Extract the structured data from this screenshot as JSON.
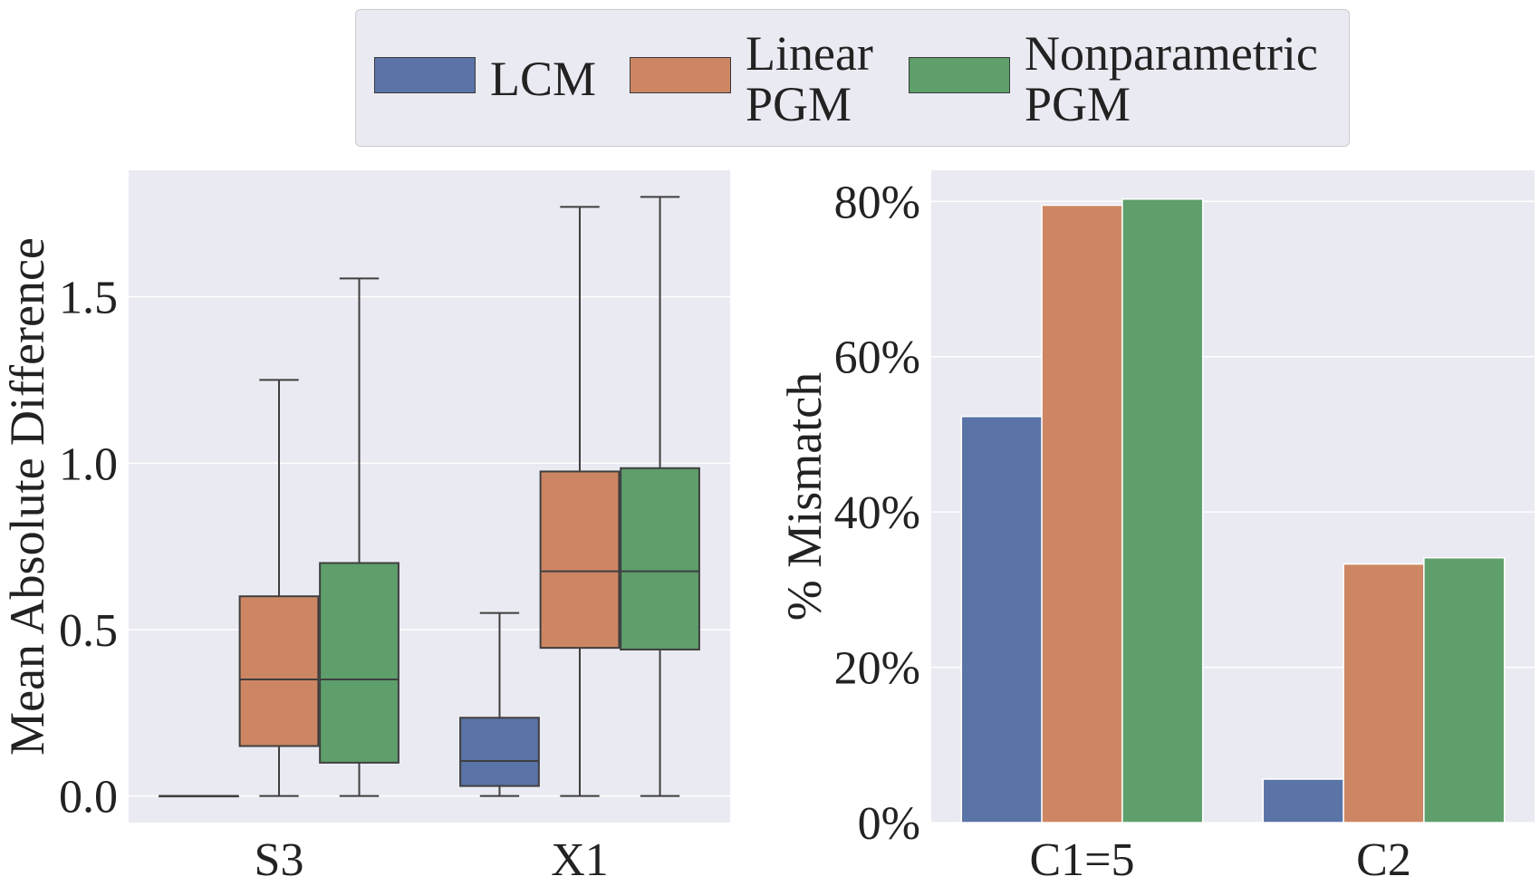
{
  "legend": {
    "items": [
      {
        "label": "LCM",
        "color": "#5a74a7"
      },
      {
        "label": "Linear\nPGM",
        "color": "#cd8663"
      },
      {
        "label": "Nonparametric\nPGM",
        "color": "#5e9f6c"
      }
    ]
  },
  "chart_data": [
    {
      "type": "box",
      "categories": [
        "S3",
        "X1"
      ],
      "ylabel": "Mean Absolute Difference",
      "xlabel": "",
      "ylim": [
        -0.08,
        1.88
      ],
      "yticks": [
        0.0,
        0.5,
        1.0,
        1.5
      ],
      "ytick_labels": [
        "0.0",
        "0.5",
        "1.0",
        "1.5"
      ],
      "grid": true,
      "series": [
        {
          "name": "LCM",
          "boxes": [
            {
              "min": 0.0,
              "q1": 0.0,
              "median": 0.0,
              "q3": 0.0,
              "max": 0.0
            },
            {
              "min": 0.0,
              "q1": 0.03,
              "median": 0.105,
              "q3": 0.235,
              "max": 0.55
            }
          ]
        },
        {
          "name": "Linear PGM",
          "boxes": [
            {
              "min": 0.0,
              "q1": 0.15,
              "median": 0.35,
              "q3": 0.6,
              "max": 1.25
            },
            {
              "min": 0.0,
              "q1": 0.445,
              "median": 0.675,
              "q3": 0.975,
              "max": 1.77
            }
          ]
        },
        {
          "name": "Nonparametric PGM",
          "boxes": [
            {
              "min": 0.0,
              "q1": 0.1,
              "median": 0.35,
              "q3": 0.7,
              "max": 1.555
            },
            {
              "min": 0.0,
              "q1": 0.44,
              "median": 0.675,
              "q3": 0.985,
              "max": 1.8
            }
          ]
        }
      ]
    },
    {
      "type": "bar",
      "categories": [
        "C1=5",
        "C2"
      ],
      "ylabel": "% Mismatch",
      "xlabel": "",
      "ylim": [
        0,
        84
      ],
      "yticks": [
        0,
        20,
        40,
        60,
        80
      ],
      "ytick_labels": [
        "0%",
        "20%",
        "40%",
        "60%",
        "80%"
      ],
      "grid": true,
      "series": [
        {
          "name": "LCM",
          "values": [
            52.3,
            5.6
          ]
        },
        {
          "name": "Linear PGM",
          "values": [
            79.5,
            33.3
          ]
        },
        {
          "name": "Nonparametric PGM",
          "values": [
            80.3,
            34.1
          ]
        }
      ]
    }
  ]
}
